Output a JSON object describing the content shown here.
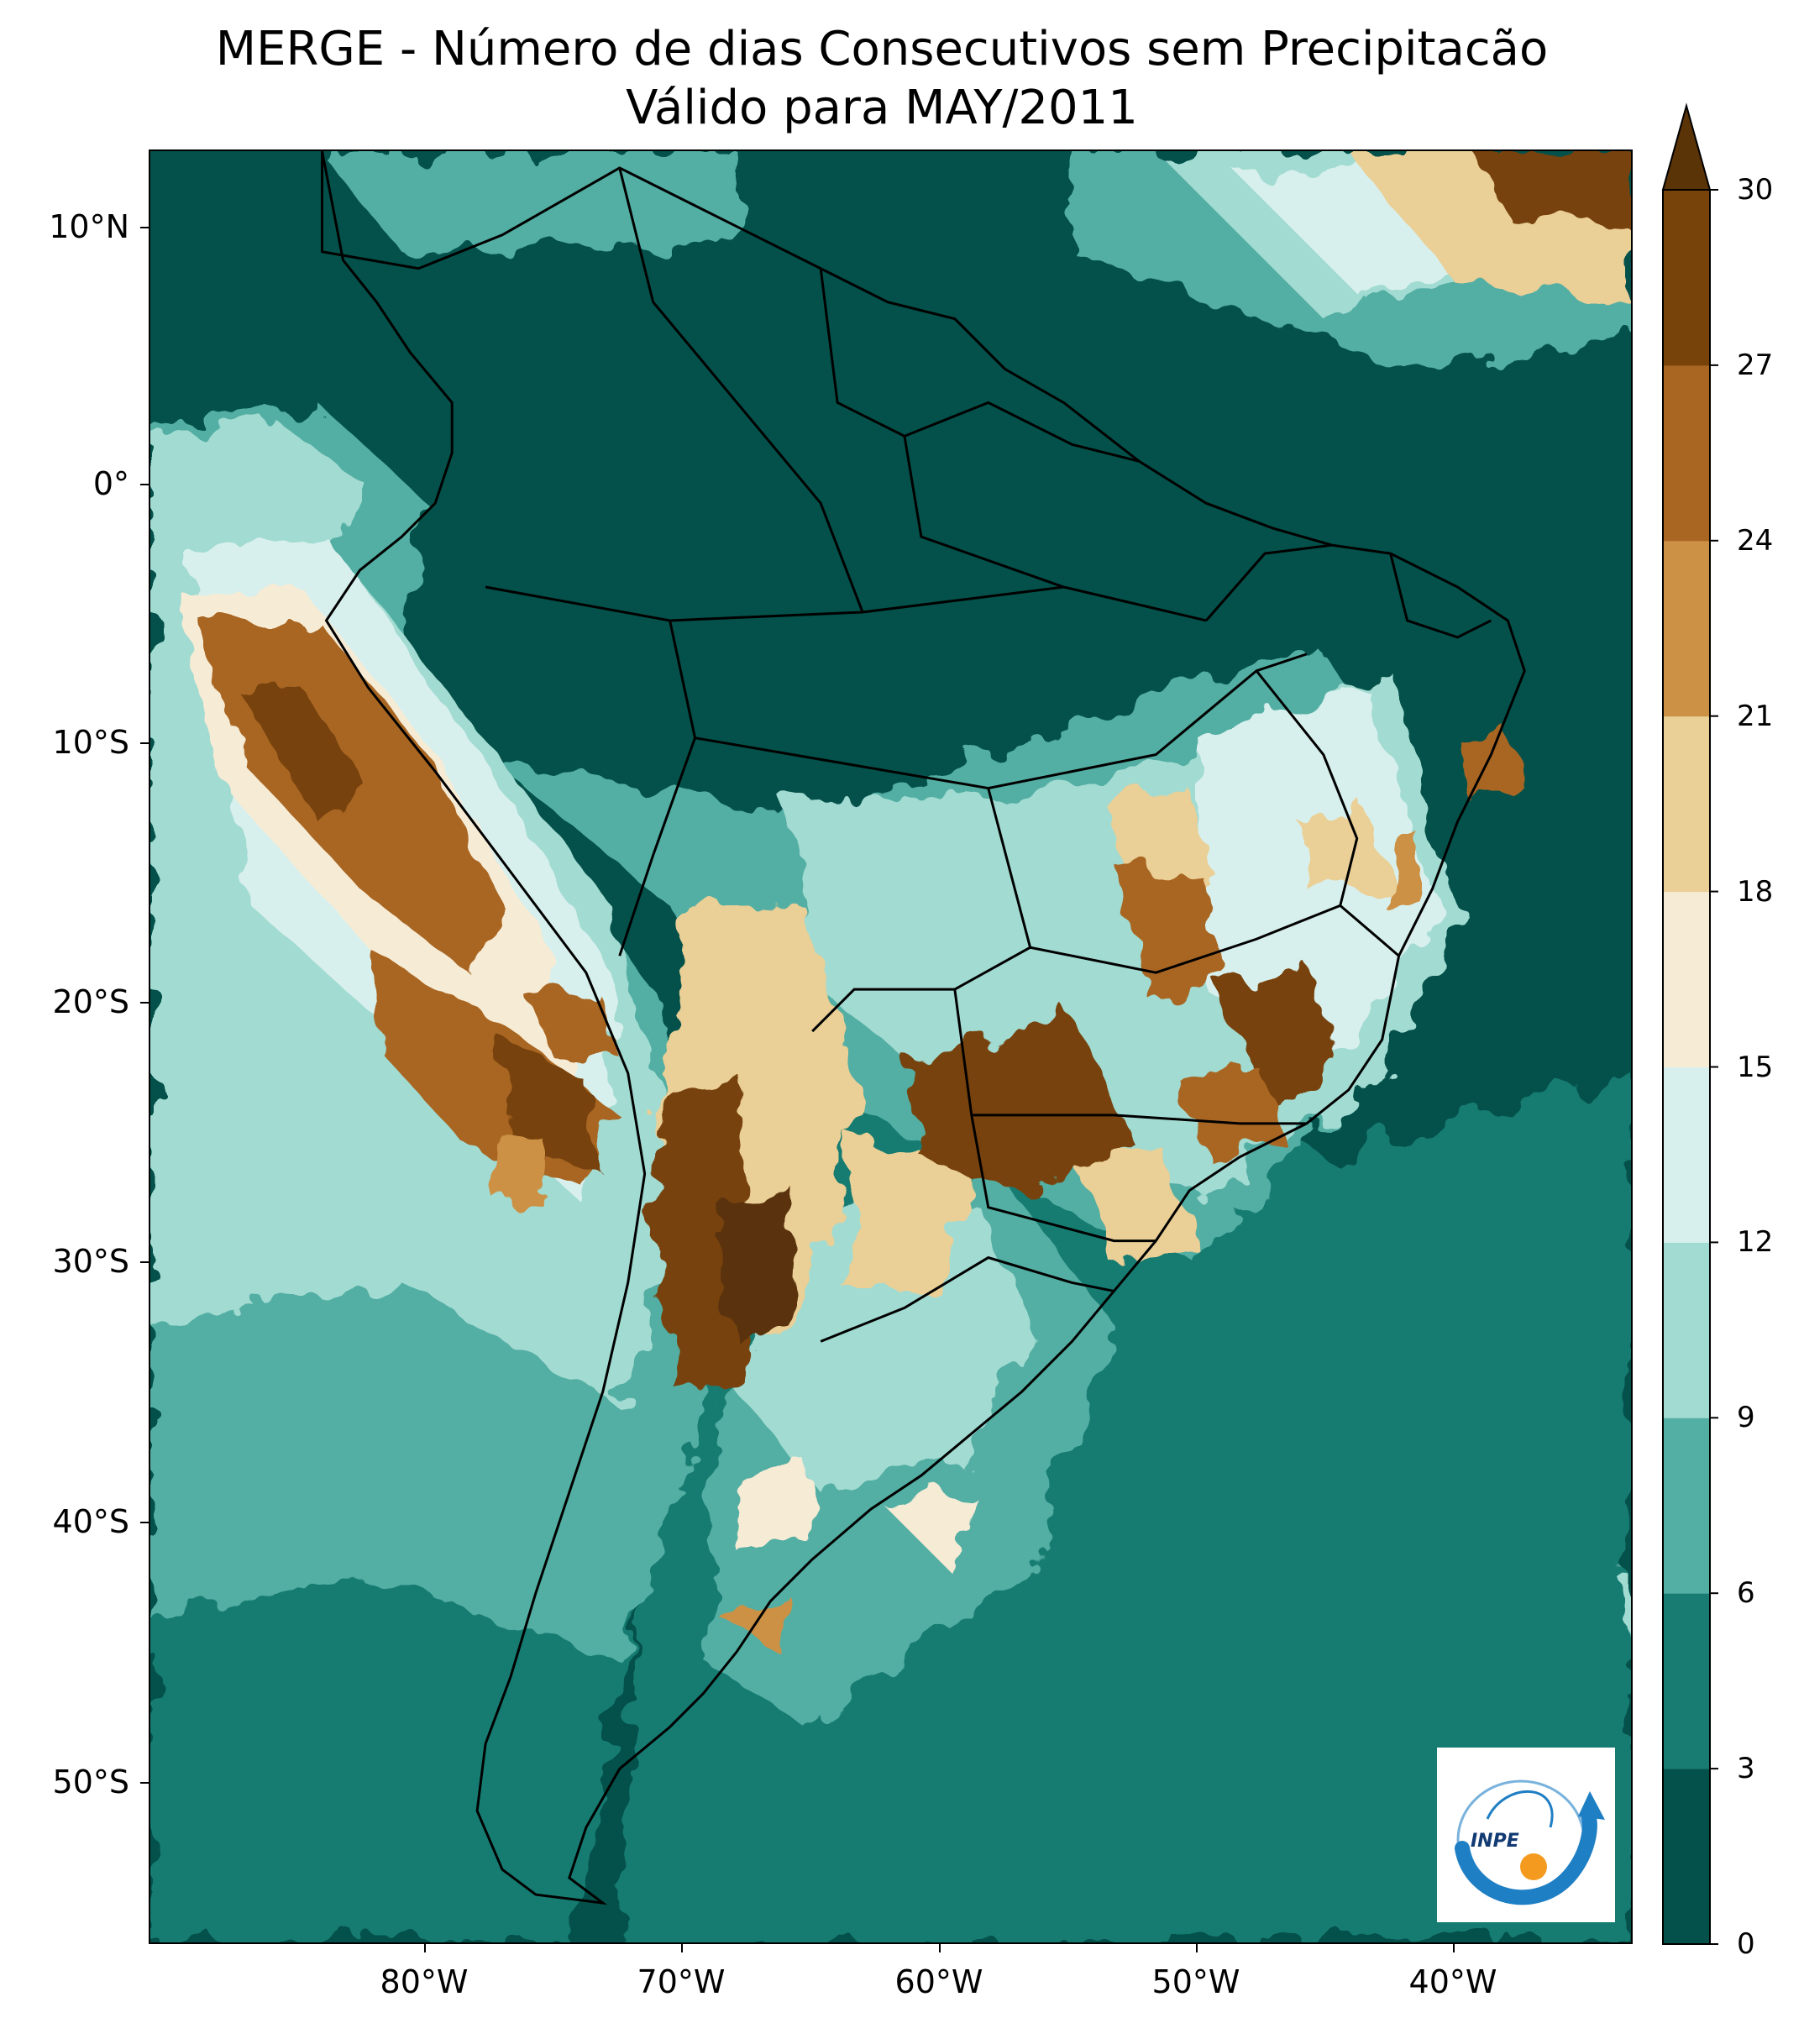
{
  "title": {
    "line1": "MERGE - Número de dias Consecutivos sem Precipitacão",
    "line2": "Válido para MAY/2011"
  },
  "map": {
    "region": "South America",
    "background_color": "#03514a",
    "lat_labels": [
      "10°N",
      "0°",
      "10°S",
      "20°S",
      "30°S",
      "40°S",
      "50°S"
    ],
    "lon_labels": [
      "80°W",
      "70°W",
      "60°W",
      "50°W",
      "40°W"
    ],
    "borders_color": "#000000"
  },
  "colorbar": {
    "ticks": [
      "0",
      "3",
      "6",
      "9",
      "12",
      "15",
      "18",
      "21",
      "24",
      "27",
      "30"
    ],
    "colors": [
      "#03514a",
      "#197c72",
      "#53aea3",
      "#a2dbd2",
      "#d8f0ed",
      "#f6ebd5",
      "#eacf96",
      "#cc9145",
      "#a96623",
      "#77430b"
    ],
    "extend_color": "#5a3307",
    "extend": "max"
  },
  "logo": {
    "text": "INPE",
    "arc_color": "#1f7fc4",
    "dot_color": "#f39a1f"
  }
}
